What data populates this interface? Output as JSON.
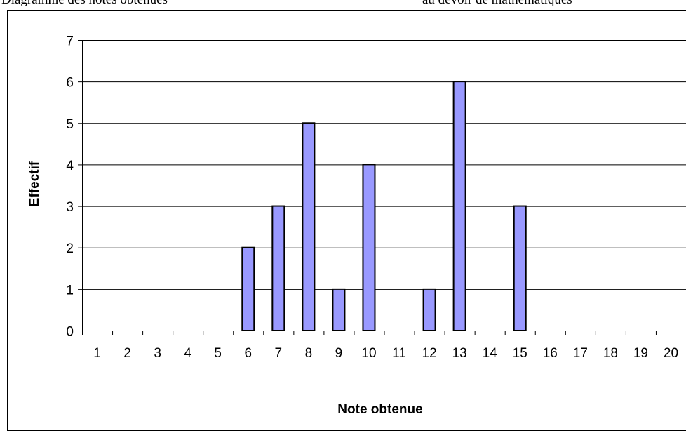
{
  "page_fragment": {
    "left": "Diagramme des notes obtenues",
    "right": "au devoir de mathématiques"
  },
  "chart_data": {
    "type": "bar",
    "categories": [
      "1",
      "2",
      "3",
      "4",
      "5",
      "6",
      "7",
      "8",
      "9",
      "10",
      "11",
      "12",
      "13",
      "14",
      "15",
      "16",
      "17",
      "18",
      "19",
      "20"
    ],
    "values": [
      0,
      0,
      0,
      0,
      0,
      2,
      3,
      5,
      1,
      4,
      0,
      1,
      6,
      0,
      3,
      0,
      0,
      0,
      0,
      0
    ],
    "xlabel": "Note obtenue",
    "ylabel": "Effectif",
    "ylim": [
      0,
      7
    ],
    "yticks": [
      "0",
      "1",
      "2",
      "3",
      "4",
      "5",
      "6",
      "7"
    ],
    "grid": true,
    "legend": "none",
    "colors": {
      "bar_fill": "#9999FF",
      "bar_stroke": "#000000",
      "gridline": "#000000"
    }
  }
}
